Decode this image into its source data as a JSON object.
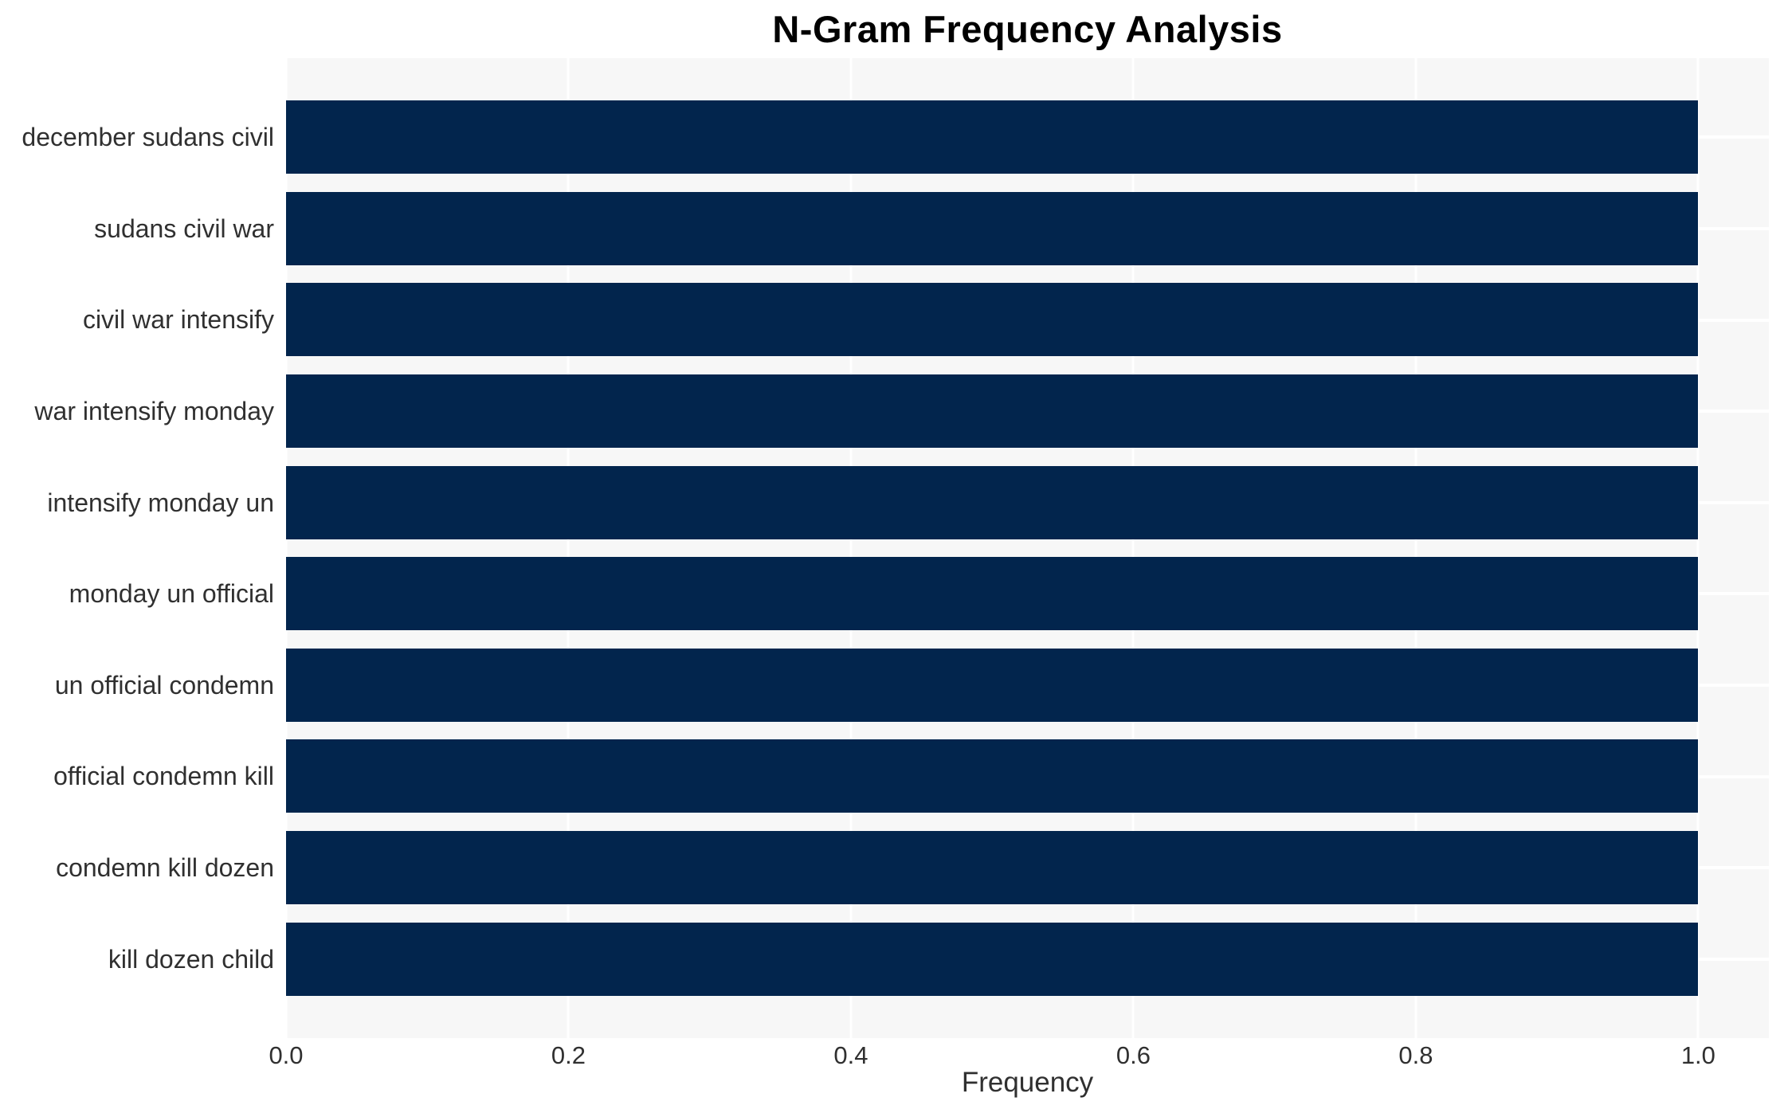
{
  "chart_data": {
    "type": "bar",
    "orientation": "horizontal",
    "title": "N-Gram Frequency Analysis",
    "xlabel": "Frequency",
    "ylabel": "",
    "categories": [
      "december sudans civil",
      "sudans civil war",
      "civil war intensify",
      "war intensify monday",
      "intensify monday un",
      "monday un official",
      "un official condemn",
      "official condemn kill",
      "condemn kill dozen",
      "kill dozen child"
    ],
    "values": [
      1.0,
      1.0,
      1.0,
      1.0,
      1.0,
      1.0,
      1.0,
      1.0,
      1.0,
      1.0
    ],
    "xlim": [
      0,
      1.05
    ],
    "xticks": [
      0.0,
      0.2,
      0.4,
      0.6,
      0.8,
      1.0
    ],
    "xtick_labels": [
      "0.0",
      "0.2",
      "0.4",
      "0.6",
      "0.8",
      "1.0"
    ],
    "grid": "white gridlines on light-gray plot background, vertical at x ticks and horizontal at category centers",
    "legend": "none",
    "colors": {
      "bar": "#02254d",
      "plot_background": "#f7f7f7",
      "gridline": "#ffffff",
      "page_background": "#ffffff",
      "tick_text": "#303030",
      "title_text": "#000000"
    }
  }
}
